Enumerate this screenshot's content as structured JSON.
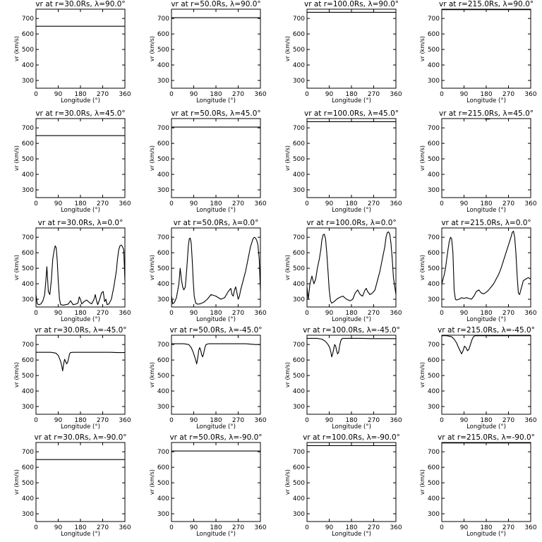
{
  "chart_data": {
    "type": "line",
    "layout": "grid 5x4",
    "xlabel": "Longitude (°)",
    "ylabel": "vr (km/s)",
    "xlim": [
      0,
      360
    ],
    "ylim": [
      250,
      760
    ],
    "xticks": [
      "0",
      "90",
      "180",
      "270",
      "360"
    ],
    "yticks": [
      "300",
      "400",
      "500",
      "600",
      "700"
    ],
    "grid": false,
    "panels": [
      {
        "title": "vr at r=30.0Rs, λ=90.0°",
        "x": [
          0,
          360
        ],
        "y": [
          650,
          650
        ]
      },
      {
        "title": "vr at r=50.0Rs, λ=90.0°",
        "x": [
          0,
          360
        ],
        "y": [
          705,
          705
        ]
      },
      {
        "title": "vr at r=100.0Rs, λ=90.0°",
        "x": [
          0,
          360
        ],
        "y": [
          740,
          740
        ]
      },
      {
        "title": "vr at r=215.0Rs, λ=90.0°",
        "x": [
          0,
          360
        ],
        "y": [
          757,
          757
        ]
      },
      {
        "title": "vr at r=30.0Rs, λ=45.0°",
        "x": [
          0,
          360
        ],
        "y": [
          650,
          650
        ]
      },
      {
        "title": "vr at r=50.0Rs, λ=45.0°",
        "x": [
          0,
          360
        ],
        "y": [
          705,
          705
        ]
      },
      {
        "title": "vr at r=100.0Rs, λ=45.0°",
        "x": [
          0,
          360
        ],
        "y": [
          740,
          740
        ]
      },
      {
        "title": "vr at r=215.0Rs, λ=45.0°",
        "x": [
          175,
          195
        ],
        "y": [
          757,
          757
        ]
      },
      {
        "title": "vr at r=30.0Rs, λ=0.0°",
        "x": [
          0,
          5,
          12,
          20,
          28,
          35,
          40,
          44,
          50,
          56,
          62,
          68,
          74,
          78,
          82,
          86,
          90,
          95,
          100,
          110,
          120,
          130,
          140,
          150,
          160,
          170,
          175,
          180,
          185,
          195,
          205,
          215,
          225,
          235,
          240,
          245,
          250,
          258,
          265,
          272,
          278,
          283,
          288,
          295,
          305,
          315,
          325,
          330,
          335,
          340,
          345,
          350,
          355,
          360
        ],
        "y": [
          330,
          270,
          265,
          270,
          290,
          330,
          420,
          510,
          350,
          330,
          420,
          560,
          620,
          645,
          630,
          550,
          420,
          300,
          265,
          262,
          265,
          268,
          290,
          265,
          268,
          275,
          315,
          300,
          270,
          285,
          295,
          280,
          270,
          300,
          330,
          290,
          265,
          300,
          340,
          350,
          285,
          300,
          265,
          270,
          300,
          380,
          480,
          560,
          620,
          645,
          650,
          640,
          620,
          420
        ]
      },
      {
        "title": "vr at r=50.0Rs, λ=0.0°",
        "x": [
          0,
          5,
          12,
          20,
          30,
          35,
          40,
          45,
          50,
          56,
          62,
          68,
          72,
          76,
          80,
          84,
          88,
          92,
          98,
          105,
          115,
          130,
          145,
          160,
          180,
          200,
          215,
          230,
          240,
          245,
          250,
          255,
          260,
          265,
          270,
          275,
          280,
          290,
          300,
          310,
          320,
          330,
          335,
          340,
          345,
          350,
          355,
          360
        ],
        "y": [
          320,
          270,
          280,
          310,
          400,
          500,
          430,
          380,
          360,
          380,
          500,
          640,
          690,
          695,
          660,
          550,
          420,
          320,
          275,
          268,
          270,
          280,
          300,
          330,
          320,
          300,
          310,
          350,
          370,
          330,
          320,
          360,
          380,
          340,
          300,
          320,
          360,
          420,
          480,
          560,
          640,
          690,
          700,
          695,
          680,
          650,
          560,
          350
        ]
      },
      {
        "title": "vr at r=100.0Rs, λ=0.0°",
        "x": [
          0,
          5,
          12,
          20,
          28,
          35,
          42,
          50,
          56,
          60,
          65,
          70,
          75,
          80,
          85,
          90,
          95,
          100,
          110,
          120,
          130,
          145,
          160,
          175,
          185,
          195,
          205,
          215,
          225,
          230,
          235,
          240,
          245,
          255,
          265,
          275,
          285,
          295,
          305,
          315,
          320,
          325,
          330,
          335,
          340,
          345,
          350,
          360
        ],
        "y": [
          380,
          300,
          400,
          450,
          400,
          430,
          500,
          560,
          620,
          680,
          715,
          720,
          690,
          600,
          480,
          360,
          290,
          275,
          285,
          300,
          310,
          320,
          300,
          290,
          300,
          340,
          360,
          330,
          320,
          340,
          360,
          370,
          350,
          330,
          340,
          360,
          420,
          480,
          560,
          640,
          700,
          730,
          735,
          720,
          660,
          560,
          440,
          330
        ]
      },
      {
        "title": "vr at r=215.0Rs, λ=0.0°",
        "x": [
          0,
          5,
          10,
          15,
          20,
          25,
          30,
          35,
          40,
          45,
          50,
          55,
          60,
          70,
          80,
          90,
          100,
          110,
          120,
          130,
          140,
          150,
          160,
          170,
          180,
          190,
          200,
          210,
          220,
          230,
          240,
          250,
          260,
          270,
          280,
          285,
          290,
          295,
          300,
          305,
          310,
          315,
          320,
          325,
          330,
          340,
          350,
          360
        ],
        "y": [
          400,
          430,
          460,
          500,
          560,
          620,
          670,
          700,
          690,
          600,
          360,
          300,
          295,
          300,
          310,
          305,
          310,
          305,
          300,
          320,
          350,
          360,
          340,
          335,
          345,
          360,
          380,
          400,
          430,
          460,
          500,
          550,
          600,
          650,
          700,
          730,
          740,
          700,
          600,
          450,
          340,
          330,
          360,
          390,
          420,
          430,
          440,
          430
        ]
      },
      {
        "title": "vr at r=30.0Rs, λ=-45.0°",
        "x": [
          0,
          60,
          80,
          90,
          95,
          100,
          105,
          108,
          112,
          116,
          120,
          124,
          128,
          132,
          136,
          140,
          150,
          180,
          220,
          260,
          300,
          330,
          360
        ],
        "y": [
          650,
          650,
          645,
          630,
          610,
          590,
          555,
          530,
          575,
          605,
          590,
          575,
          585,
          610,
          640,
          648,
          650,
          650,
          650,
          650,
          650,
          648,
          648
        ]
      },
      {
        "title": "vr at r=50.0Rs, λ=-45.0°",
        "x": [
          0,
          50,
          70,
          80,
          88,
          94,
          98,
          102,
          106,
          110,
          114,
          118,
          122,
          126,
          130,
          135,
          140,
          150,
          180,
          220,
          260,
          300,
          340,
          360
        ],
        "y": [
          705,
          705,
          700,
          680,
          650,
          620,
          600,
          575,
          610,
          660,
          680,
          665,
          635,
          620,
          640,
          680,
          700,
          705,
          705,
          705,
          705,
          705,
          700,
          700
        ]
      },
      {
        "title": "vr at r=100.0Rs, λ=-45.0°",
        "x": [
          0,
          40,
          60,
          75,
          85,
          92,
          97,
          100,
          104,
          108,
          112,
          116,
          120,
          124,
          128,
          132,
          136,
          140,
          145,
          150,
          160,
          180,
          220,
          260,
          300,
          340,
          360
        ],
        "y": [
          740,
          740,
          735,
          720,
          700,
          680,
          650,
          620,
          640,
          670,
          700,
          690,
          660,
          640,
          650,
          690,
          720,
          735,
          740,
          740,
          740,
          740,
          740,
          738,
          738,
          738,
          738
        ]
      },
      {
        "title": "vr at r=215.0Rs, λ=-45.0°",
        "x": [
          0,
          20,
          40,
          50,
          60,
          68,
          74,
          80,
          86,
          92,
          98,
          104,
          110,
          116,
          122,
          128,
          135,
          145,
          160,
          200,
          250,
          300,
          360
        ],
        "y": [
          757,
          757,
          750,
          735,
          710,
          680,
          660,
          640,
          660,
          690,
          680,
          660,
          670,
          700,
          730,
          750,
          757,
          757,
          757,
          757,
          757,
          757,
          757
        ]
      },
      {
        "title": "vr at r=30.0Rs, λ=-90.0°",
        "x": [
          0,
          360
        ],
        "y": [
          650,
          650
        ]
      },
      {
        "title": "vr at r=50.0Rs, λ=-90.0°",
        "x": [
          0,
          360
        ],
        "y": [
          705,
          705
        ]
      },
      {
        "title": "vr at r=100.0Rs, λ=-90.0°",
        "x": [
          0,
          360
        ],
        "y": [
          740,
          740
        ]
      },
      {
        "title": "vr at r=215.0Rs, λ=-90.0°",
        "x": [
          0,
          360
        ],
        "y": [
          757,
          757
        ]
      }
    ]
  }
}
